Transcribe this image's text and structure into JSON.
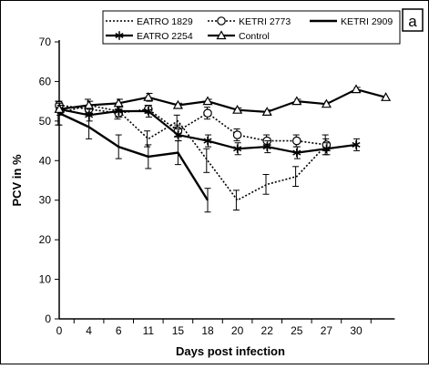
{
  "panel_label": "a",
  "chart_data": {
    "type": "line",
    "xlabel": "Days post infection",
    "ylabel": "PCV in %",
    "categories": [
      "0",
      "4",
      "6",
      "11",
      "15",
      "18",
      "20",
      "22",
      "25",
      "27",
      "30"
    ],
    "yticks": [
      "0",
      "10",
      "20",
      "30",
      "40",
      "50",
      "60",
      "70"
    ],
    "ylim": [
      0,
      70
    ],
    "grid": false,
    "legend_position": "top",
    "series": [
      {
        "name": "EATRO 1829",
        "style": "dotted",
        "marker": "none",
        "values": [
          52,
          54,
          52.5,
          45.5,
          50,
          40,
          30,
          34,
          36,
          44,
          null
        ],
        "error": [
          3,
          1.5,
          2,
          2,
          1.5,
          3,
          2.5,
          2.5,
          2.5,
          2.5,
          null
        ]
      },
      {
        "name": "KETRI 2773",
        "style": "dotted",
        "marker": "circle",
        "values": [
          54,
          53,
          52,
          53,
          47.5,
          52,
          46.5,
          45,
          45,
          44,
          null
        ],
        "error": [
          1,
          1,
          1,
          1,
          1.5,
          1.5,
          1.5,
          1.5,
          1.5,
          1.5,
          null
        ]
      },
      {
        "name": "KETRI 2909",
        "style": "solid",
        "marker": "none",
        "values": [
          52,
          48.5,
          43.5,
          41,
          42,
          30,
          null,
          null,
          null,
          null,
          null
        ],
        "error": [
          3,
          3,
          3,
          3,
          3,
          3,
          null,
          null,
          null,
          null,
          null
        ]
      },
      {
        "name": "EATRO 2254",
        "style": "solid",
        "marker": "star",
        "values": [
          53,
          51.5,
          52.5,
          52.5,
          46.5,
          45,
          43,
          43.5,
          42,
          43,
          44
        ],
        "error": [
          1.5,
          1.5,
          1.5,
          1.5,
          1.5,
          1.5,
          1.5,
          1.5,
          1.5,
          1.5,
          1.5
        ]
      },
      {
        "name": "Control",
        "style": "solid",
        "marker": "triangle",
        "values": [
          53,
          54,
          54.5,
          56,
          54,
          55,
          52.8,
          52.3,
          55,
          54.3,
          58
        ],
        "extra_point": 56,
        "error": [
          1,
          1,
          1,
          1,
          0.5,
          0.5,
          0.5,
          0.5,
          0.5,
          0.5,
          0.5
        ]
      }
    ]
  }
}
